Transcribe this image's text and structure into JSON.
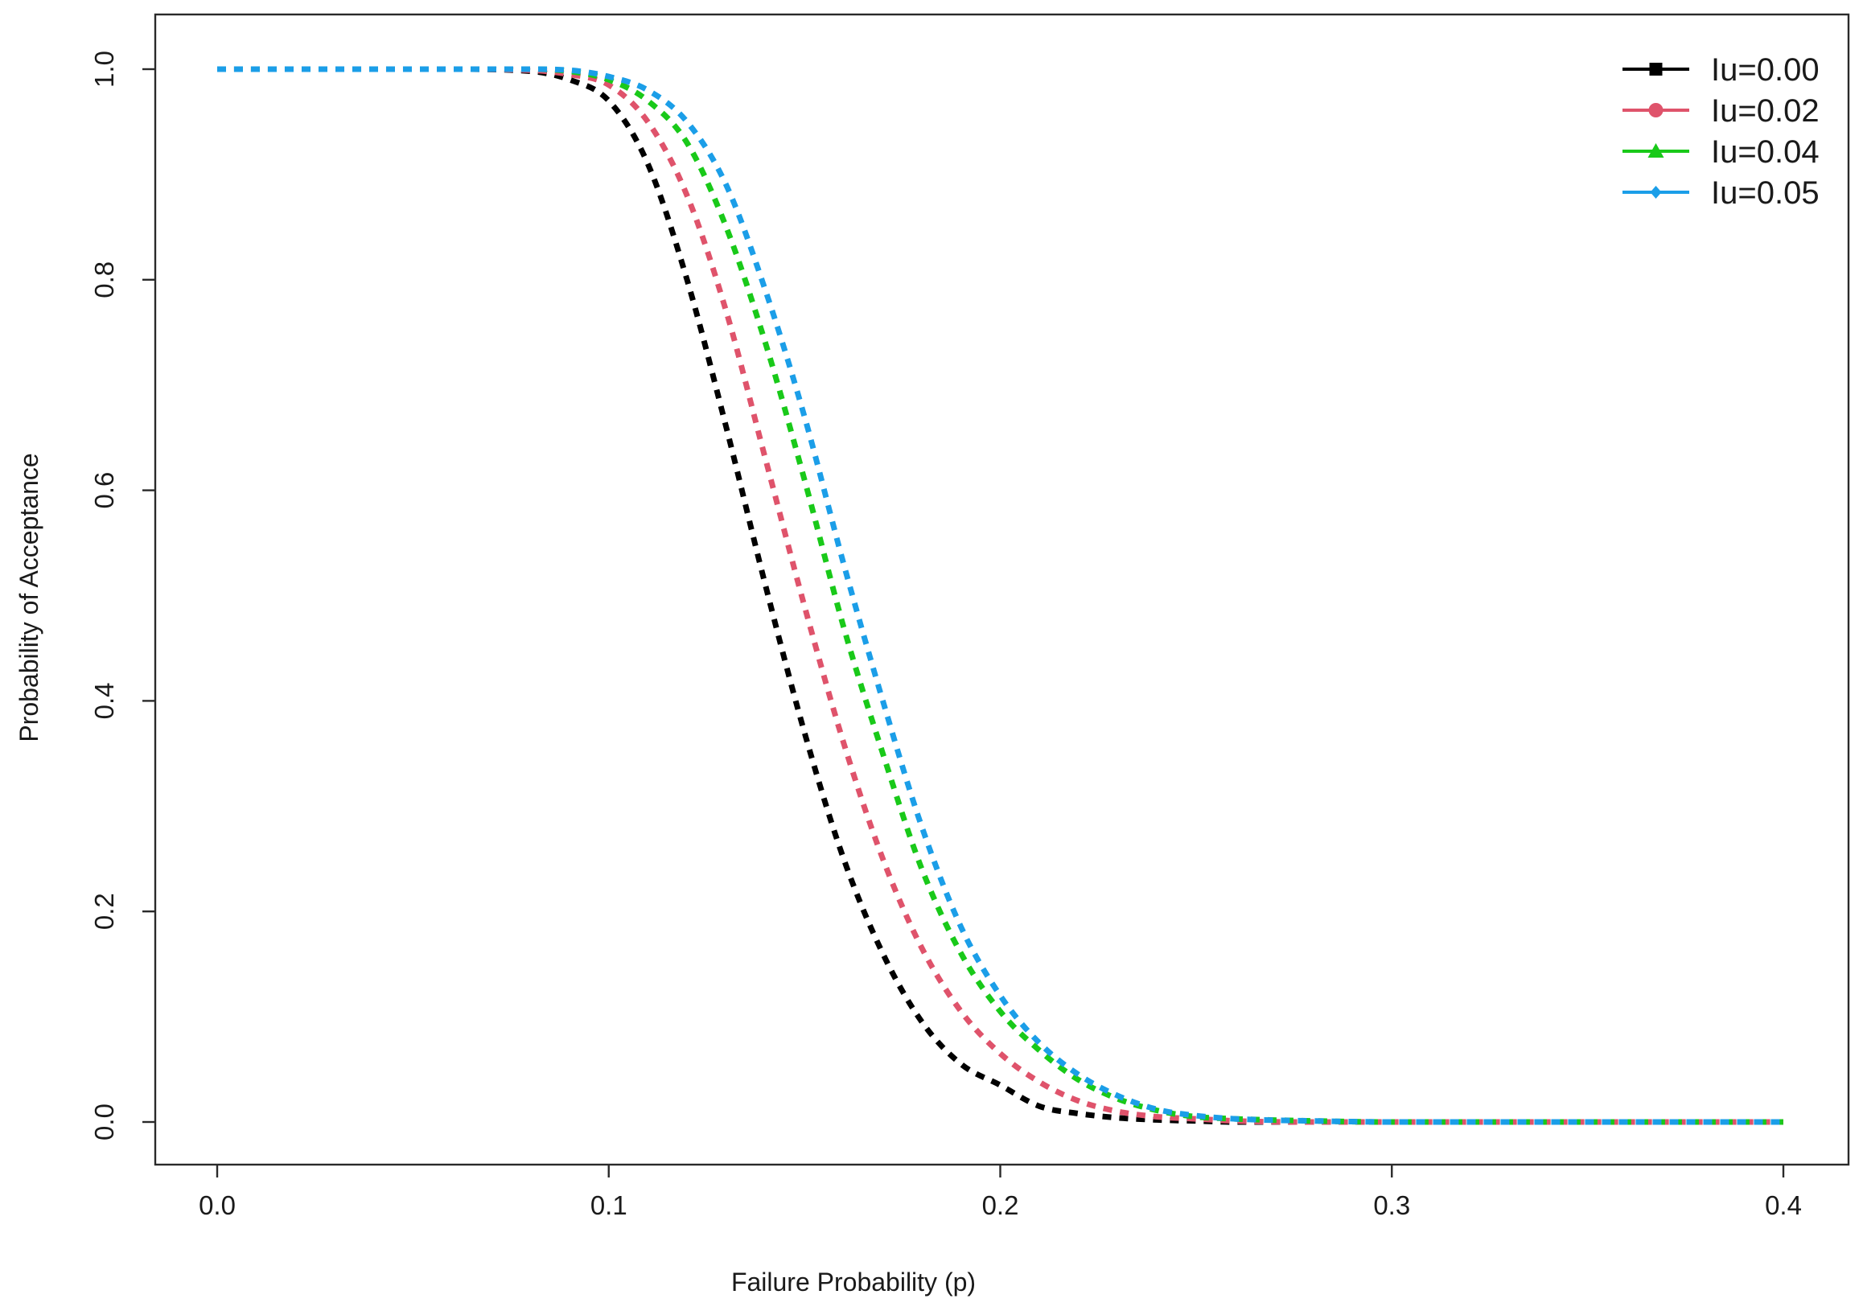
{
  "chart_data": {
    "type": "line",
    "title": "",
    "xlabel": "Failure Probability (p)",
    "ylabel": "Probability of Acceptance",
    "xlim": [
      0.0,
      0.4
    ],
    "ylim": [
      0.0,
      1.0
    ],
    "xticks": [
      "0.0",
      "0.1",
      "0.2",
      "0.3",
      "0.4"
    ],
    "yticks": [
      "0.0",
      "0.2",
      "0.4",
      "0.6",
      "0.8",
      "1.0"
    ],
    "grid": false,
    "legend_position": "top-right",
    "line_style": "dashed",
    "x": [
      0.0,
      0.02,
      0.04,
      0.06,
      0.08,
      0.09,
      0.1,
      0.11,
      0.12,
      0.13,
      0.14,
      0.15,
      0.16,
      0.17,
      0.18,
      0.19,
      0.2,
      0.21,
      0.22,
      0.23,
      0.24,
      0.25,
      0.26,
      0.28,
      0.3,
      0.35,
      0.4
    ],
    "series": [
      {
        "name": "Iu=0.00",
        "color": "#000000",
        "marker": "square",
        "values": [
          1.0,
          1.0,
          1.0,
          1.0,
          0.998,
          0.99,
          0.97,
          0.91,
          0.8,
          0.66,
          0.51,
          0.37,
          0.25,
          0.16,
          0.095,
          0.055,
          0.035,
          0.015,
          0.008,
          0.004,
          0.002,
          0.001,
          0.0,
          0.0,
          0.0,
          0.0,
          0.0
        ]
      },
      {
        "name": "Iu=0.02",
        "color": "#DF536B",
        "marker": "circle",
        "values": [
          1.0,
          1.0,
          1.0,
          1.0,
          0.999,
          0.995,
          0.985,
          0.95,
          0.88,
          0.77,
          0.63,
          0.49,
          0.36,
          0.25,
          0.165,
          0.105,
          0.065,
          0.038,
          0.02,
          0.01,
          0.005,
          0.003,
          0.001,
          0.0,
          0.0,
          0.0,
          0.0
        ]
      },
      {
        "name": "Iu=0.04",
        "color": "#19C919",
        "marker": "triangle",
        "values": [
          1.0,
          1.0,
          1.0,
          1.0,
          1.0,
          0.998,
          0.99,
          0.97,
          0.93,
          0.85,
          0.74,
          0.61,
          0.47,
          0.35,
          0.24,
          0.16,
          0.105,
          0.068,
          0.04,
          0.022,
          0.011,
          0.005,
          0.003,
          0.001,
          0.0,
          0.0,
          0.0
        ]
      },
      {
        "name": "Iu=0.05",
        "color": "#1B9EE8",
        "marker": "diamond",
        "values": [
          1.0,
          1.0,
          1.0,
          1.0,
          1.0,
          0.999,
          0.993,
          0.98,
          0.95,
          0.89,
          0.79,
          0.67,
          0.53,
          0.4,
          0.28,
          0.185,
          0.12,
          0.075,
          0.045,
          0.025,
          0.012,
          0.006,
          0.003,
          0.001,
          0.0,
          0.0,
          0.0
        ]
      }
    ]
  }
}
